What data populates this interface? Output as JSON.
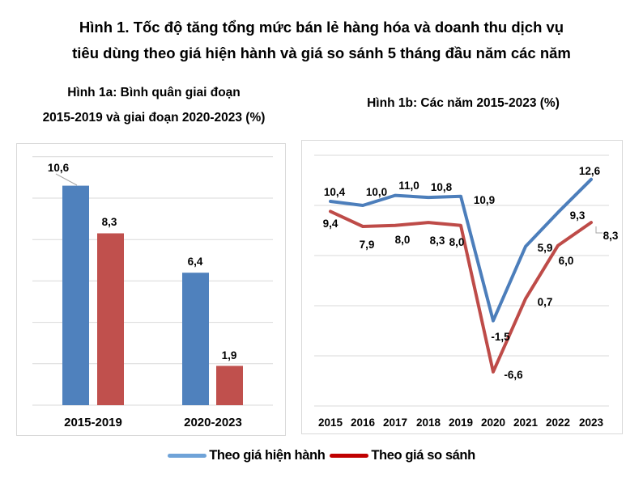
{
  "title": {
    "line1": "Hình 1. Tốc độ tăng tổng mức bán lẻ hàng hóa và doanh thu dịch vụ",
    "line2": "tiêu dùng theo giá hiện hành và giá so sánh 5 tháng đầu năm các năm"
  },
  "subtitle_left": {
    "line1": "Hình 1a: Bình quân giai đoạn",
    "line2": "2015-2019 và giai đoạn 2020-2023 (%)"
  },
  "subtitle_right": "Hình 1b: Các năm 2015-2023  (%)",
  "legend": {
    "items": [
      {
        "label": "Theo giá hiện hành",
        "color": "#6FA3D8"
      },
      {
        "label": "Theo giá so sánh",
        "color": "#C00000"
      }
    ]
  },
  "colors": {
    "bar_blue": "#4F81BD",
    "bar_red": "#C0504D",
    "line_blue": "#4C7EBB",
    "line_red": "#BE4B48",
    "grid": "#D9D9D9",
    "panel_border": "#D9D9D9",
    "leader": "#A6A6A6",
    "text": "#000000"
  },
  "chart_data": [
    {
      "type": "bar",
      "title": "Hình 1a: Bình quân giai đoạn 2015-2019 và giai đoạn 2020-2023 (%)",
      "categories": [
        "2015-2019",
        "2020-2023"
      ],
      "series": [
        {
          "name": "Theo giá hiện hành",
          "color": "#4F81BD",
          "values": [
            10.6,
            6.4
          ],
          "labels": [
            "10,6",
            "6,4"
          ]
        },
        {
          "name": "Theo giá so sánh",
          "color": "#C0504D",
          "values": [
            8.3,
            1.9
          ],
          "labels": [
            "8,3",
            "1,9"
          ]
        }
      ],
      "ylabel": "",
      "xlabel": "",
      "ylim": [
        0,
        12
      ],
      "grid_step": 2,
      "grid": true,
      "y_tick_labels_visible": false,
      "legend_position": "bottom"
    },
    {
      "type": "line",
      "title": "Hình 1b: Các năm 2015-2023 (%)",
      "categories": [
        "2015",
        "2016",
        "2017",
        "2018",
        "2019",
        "2020",
        "2021",
        "2022",
        "2023"
      ],
      "series": [
        {
          "name": "Theo giá hiện hành",
          "color": "#4C7EBB",
          "values": [
            10.4,
            10.0,
            11.0,
            10.8,
            10.9,
            -1.5,
            5.9,
            9.3,
            12.6
          ],
          "labels": [
            "10,4",
            "10,0",
            "11,0",
            "10,8",
            "10,9",
            "-1,5",
            "5,9",
            "9,3",
            "12,6"
          ]
        },
        {
          "name": "Theo giá so sánh",
          "color": "#BE4B48",
          "values": [
            9.4,
            7.9,
            8.0,
            8.3,
            8.0,
            -6.6,
            0.7,
            6.0,
            8.3
          ],
          "labels": [
            "9,4",
            "7,9",
            "8,0",
            "8,3",
            "8,0",
            "-6,6",
            "0,7",
            "6,0",
            "8,3"
          ]
        }
      ],
      "ylabel": "",
      "xlabel": "",
      "ylim": [
        -10,
        15
      ],
      "grid_step": 5,
      "grid": true,
      "y_tick_labels_visible": false,
      "legend_position": "bottom"
    }
  ]
}
